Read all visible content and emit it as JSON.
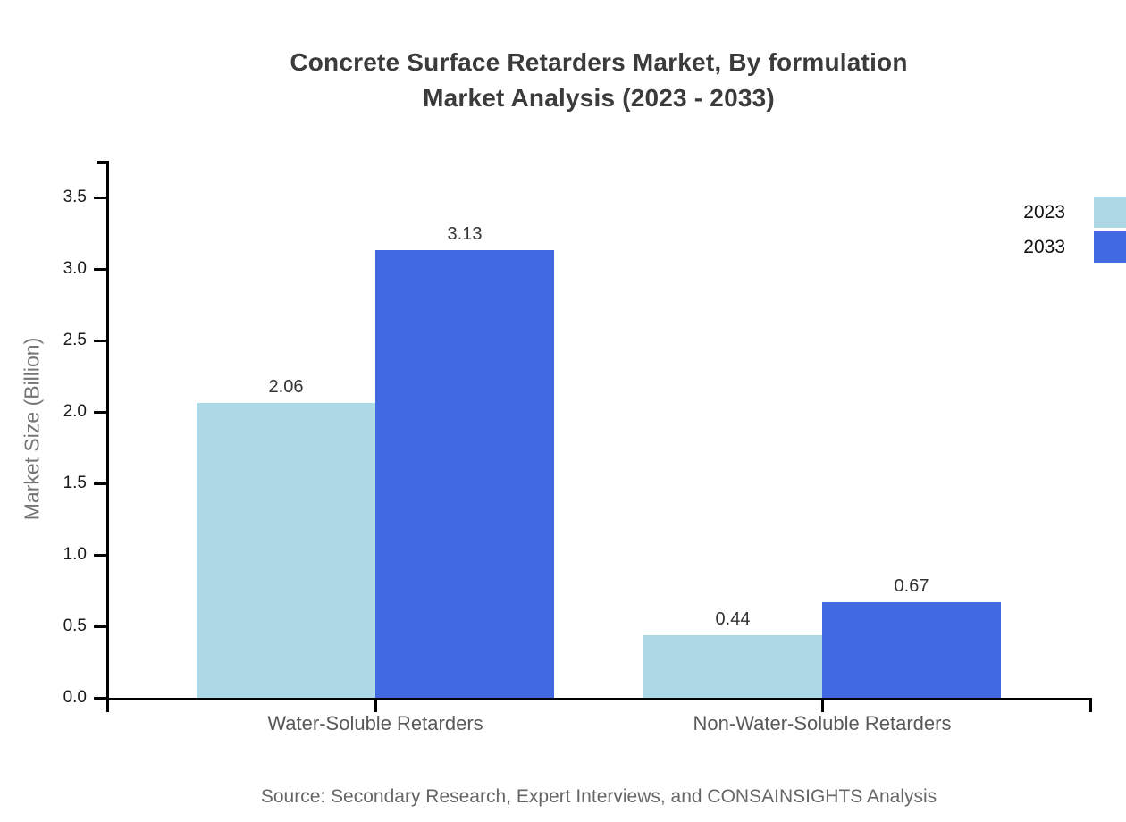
{
  "title": {
    "line1": "Concrete Surface Retarders Market, By formulation",
    "line2": "Market Analysis (2023 - 2033)"
  },
  "chart_data": {
    "type": "bar",
    "categories": [
      "Water-Soluble Retarders",
      "Non-Water-Soluble Retarders"
    ],
    "series": [
      {
        "name": "2023",
        "color": "#ADD8E6",
        "values": [
          2.06,
          0.44
        ]
      },
      {
        "name": "2033",
        "color": "#4169E1",
        "values": [
          3.13,
          0.67
        ]
      }
    ],
    "value_labels": [
      [
        "2.06",
        "0.44"
      ],
      [
        "3.13",
        "0.67"
      ]
    ],
    "ylabel": "Market Size (Billion)",
    "ylim": [
      0.0,
      3.75
    ],
    "yticks": [
      "0.0",
      "0.5",
      "1.0",
      "1.5",
      "2.0",
      "2.5",
      "3.0",
      "3.5"
    ],
    "grid": false,
    "legend_position": "right",
    "axis_color": "#000000"
  },
  "source": "Source: Secondary Research, Expert Interviews, and CONSAINSIGHTS Analysis"
}
